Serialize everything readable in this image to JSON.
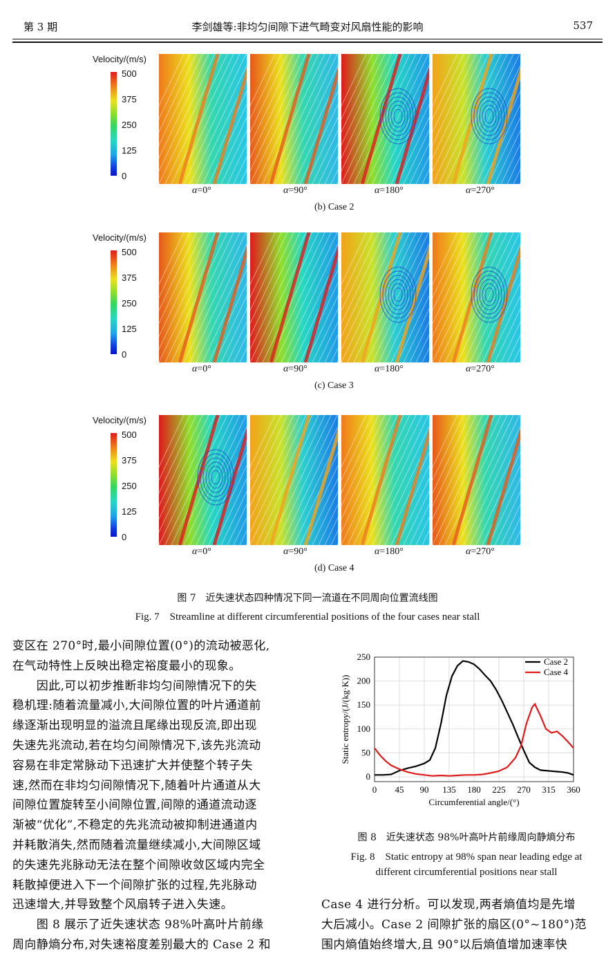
{
  "header": {
    "issue": "第 3 期",
    "title": "李剑雄等:非均匀间隙下进气畸变对风扇性能的影响",
    "page": "537"
  },
  "figure7": {
    "colorbar_title": "Velocity/(m/s)",
    "colorbar_ticks": [
      "500",
      "375",
      "250",
      "125",
      "0"
    ],
    "alpha_symbol": "α",
    "alpha_values": [
      "=0°",
      "=90°",
      "=180°",
      "=270°"
    ],
    "subfigures": [
      "(b) Case 2",
      "(c) Case 3",
      "(d) Case 4"
    ],
    "caption_cn": "图 7　近失速状态四种情况下同一流道在不同周向位置流线图",
    "caption_en": "Fig. 7　Streamline at different circumferential positions of the four cases near stall"
  },
  "text_left": [
    "变区在 270°时,最小间隙位置(0°)的流动被恶化,",
    "在气动特性上反映出稳定裕度最小的现象。",
    "　　因此,可以初步推断非均匀间隙情况下的失",
    "稳机理:随着流量减小,大间隙位置的叶片通道前",
    "缘逐渐出现明显的溢流且尾缘出现反流,即出现",
    "失速先兆流动,若在均匀间隙情况下,该先兆流动",
    "容易在非定常脉动下迅速扩大并使整个转子失",
    "速,然而在非均匀间隙情况下,随着叶片通道从大",
    "间隙位置旋转至小间隙位置,间隙的通道流动逐",
    "渐被“优化”,不稳定的先兆流动被抑制进通道内",
    "并耗散消失,然而随着流量继续减小,大间隙区域",
    "的失速先兆脉动无法在整个间隙收敛区域内完全",
    "耗散掉便进入下一个间隙扩张的过程,先兆脉动",
    "迅速增大,并导致整个风扇转子进入失速。",
    "　　图 8 展示了近失速状态 98%叶高叶片前缘",
    "周向静熵分布,对失速裕度差别最大的 Case 2 和"
  ],
  "text_right": [
    "Case 4 进行分析。可以发现,两者熵值均是先增",
    "大后减小。Case 2 间隙扩张的扇区(0°~180°)范",
    "围内熵值始终增大,且 90°以后熵值增加速率快"
  ],
  "figure8": {
    "caption_cn": "图 8　近失速状态 98%叶高叶片前缘周向静熵分布",
    "caption_en_1": "Fig. 8　Static entropy at 98% span near leading edge at",
    "caption_en_2": "different circumferential positions near stall"
  },
  "chart_data": {
    "type": "line",
    "xlabel": "Circumferential angle/(°)",
    "ylabel": "Static entropy/(J/(kg·K))",
    "xlim": [
      0,
      360
    ],
    "ylim": [
      -10,
      250
    ],
    "xticks": [
      0,
      45,
      90,
      135,
      180,
      225,
      270,
      315,
      360
    ],
    "yticks": [
      0,
      50,
      100,
      150,
      200,
      250
    ],
    "grid": true,
    "legend": "top-right",
    "series": [
      {
        "name": "Case 2",
        "color": "#000000",
        "x": [
          0,
          15,
          30,
          45,
          60,
          75,
          90,
          100,
          110,
          120,
          130,
          140,
          150,
          160,
          170,
          180,
          190,
          200,
          210,
          220,
          230,
          240,
          250,
          260,
          270,
          280,
          290,
          300,
          310,
          320,
          330,
          340,
          350,
          360
        ],
        "y": [
          4,
          4,
          5,
          13,
          18,
          22,
          28,
          35,
          60,
          110,
          170,
          210,
          232,
          242,
          240,
          235,
          225,
          212,
          200,
          182,
          160,
          135,
          110,
          82,
          55,
          30,
          20,
          14,
          13,
          12,
          11,
          10,
          8,
          4
        ]
      },
      {
        "name": "Case 4",
        "color": "#e11b1b",
        "x": [
          0,
          10,
          20,
          30,
          45,
          60,
          75,
          90,
          105,
          120,
          135,
          150,
          165,
          180,
          195,
          210,
          225,
          240,
          255,
          265,
          275,
          285,
          290,
          300,
          310,
          320,
          330,
          340,
          350,
          360
        ],
        "y": [
          60,
          45,
          33,
          24,
          16,
          10,
          6,
          4,
          2,
          3,
          2,
          3,
          4,
          4,
          5,
          8,
          12,
          20,
          40,
          65,
          112,
          145,
          152,
          128,
          100,
          92,
          95,
          85,
          73,
          60
        ]
      }
    ]
  }
}
